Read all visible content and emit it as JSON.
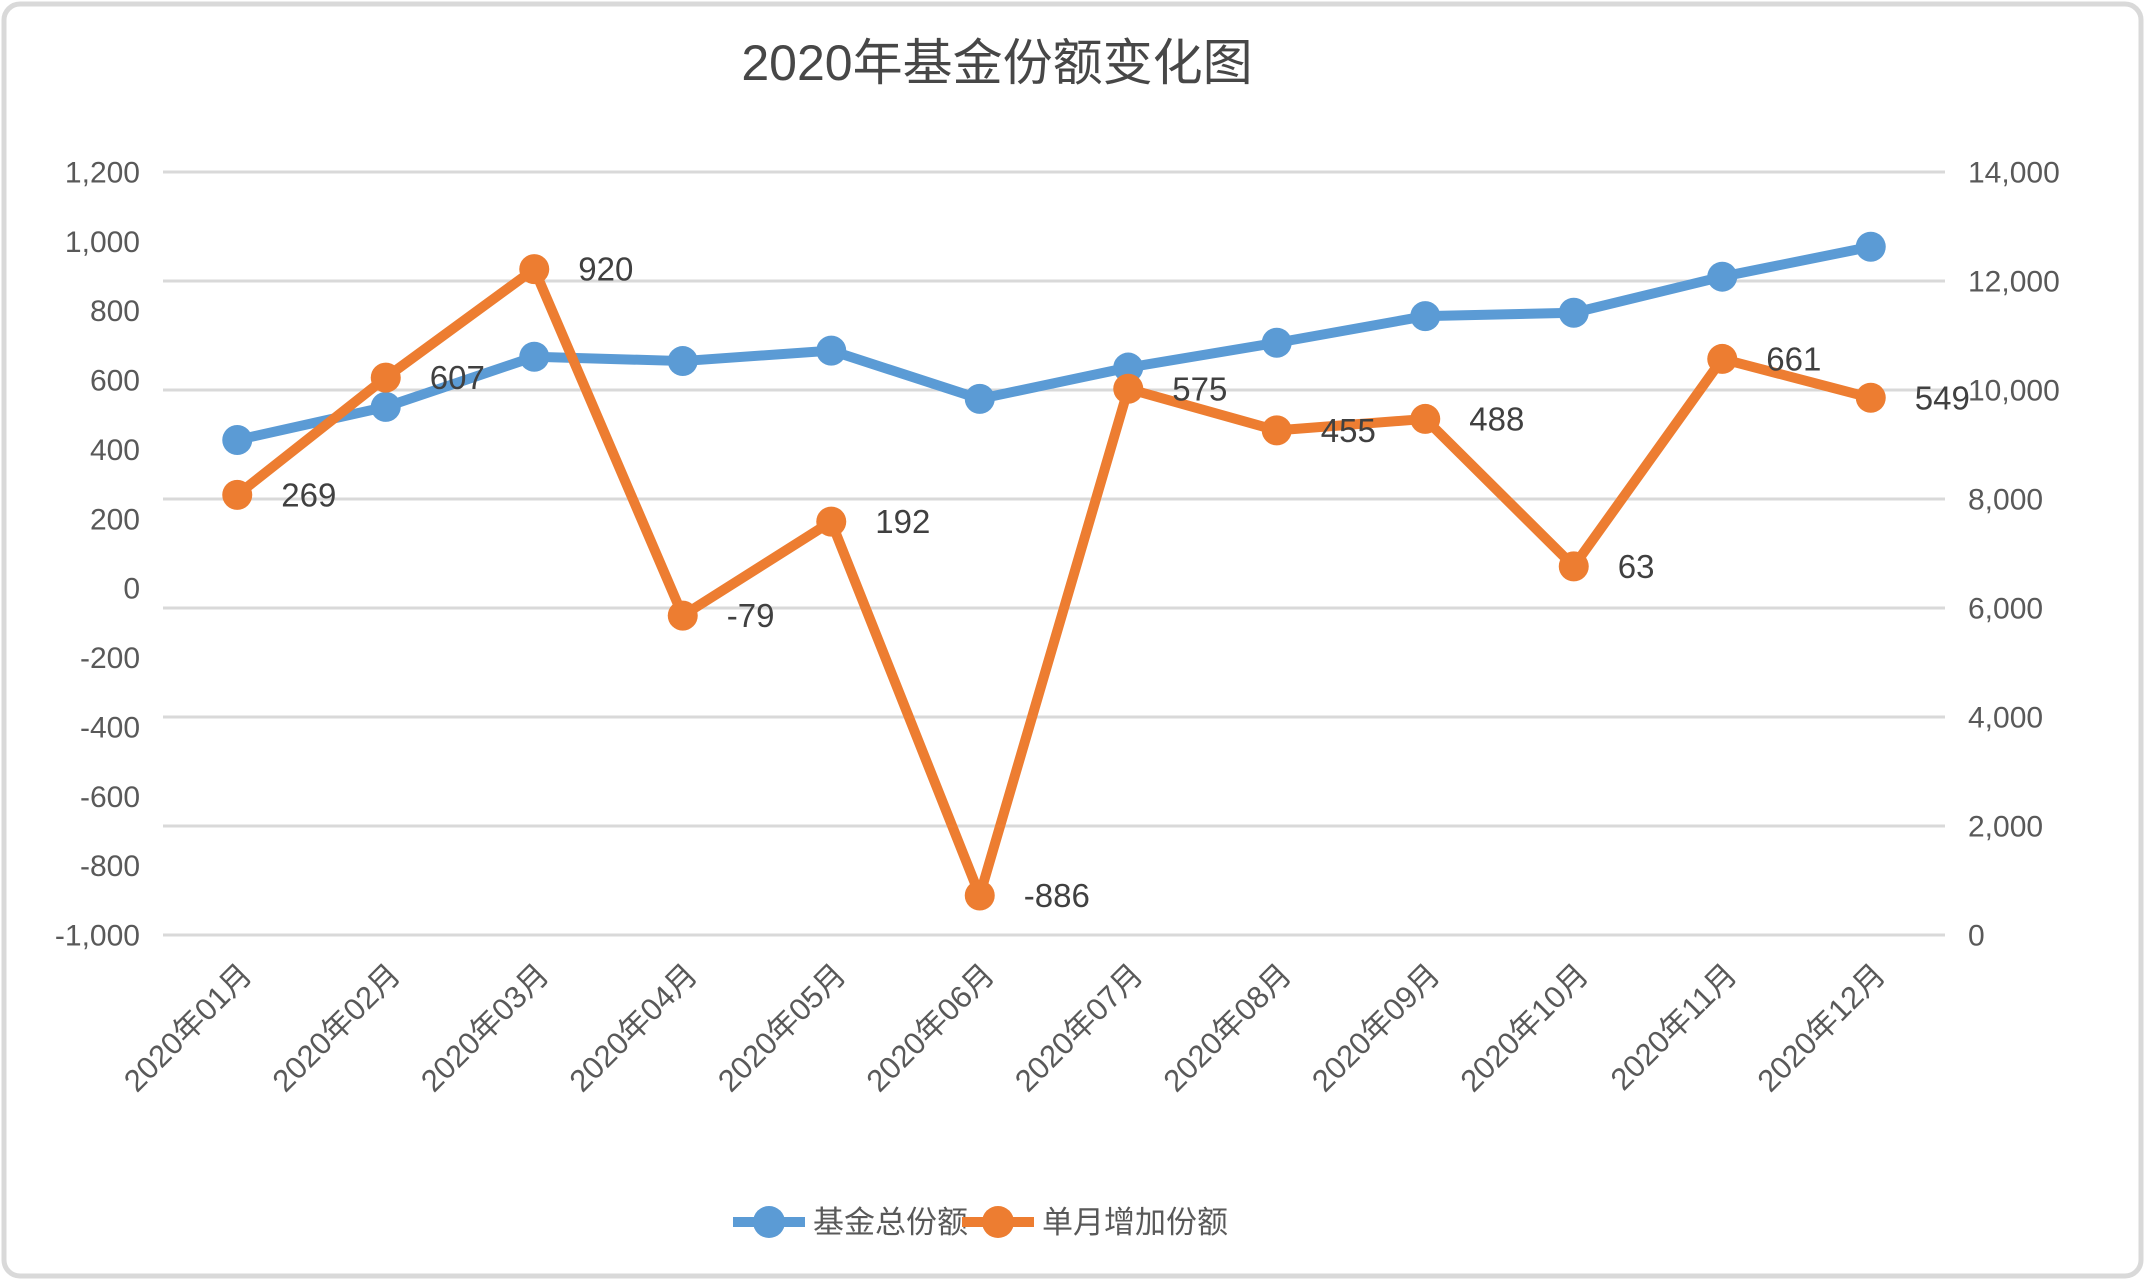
{
  "title": "2020年基金份额变化图",
  "chart_data": {
    "type": "line",
    "categories": [
      "2020年01月",
      "2020年02月",
      "2020年03月",
      "2020年04月",
      "2020年05月",
      "2020年06月",
      "2020年07月",
      "2020年08月",
      "2020年09月",
      "2020年10月",
      "2020年11月",
      "2020年12月"
    ],
    "series": [
      {
        "name": "基金总份额",
        "axis": "right",
        "color": "#5B9BD5",
        "data_labels": false,
        "values": [
          9083,
          9690,
          10610,
          10531,
          10723,
          9837,
          10412,
          10867,
          11355,
          11418,
          12079,
          12628
        ]
      },
      {
        "name": "单月增加份额",
        "axis": "left",
        "color": "#ED7D31",
        "data_labels": true,
        "values": [
          269,
          607,
          920,
          -79,
          192,
          -886,
          575,
          455,
          488,
          63,
          661,
          549
        ],
        "label_texts": [
          "269",
          "607",
          "920",
          "-79",
          "192",
          "-886",
          "575",
          "455",
          "488",
          "63",
          "661",
          "549"
        ]
      }
    ],
    "left_axis": {
      "min": -1000,
      "max": 1200,
      "step": 200,
      "tick_labels": [
        "1,200",
        "1,000",
        "800",
        "600",
        "400",
        "200",
        "0",
        "-200",
        "-400",
        "-600",
        "-800",
        "-1,000"
      ]
    },
    "right_axis": {
      "min": 0,
      "max": 14000,
      "step": 2000,
      "tick_labels": [
        "14,000",
        "12,000",
        "10,000",
        "8,000",
        "6,000",
        "4,000",
        "2,000",
        "0"
      ]
    },
    "grid": true,
    "gridlines_follow": "right_axis",
    "legend_position": "bottom",
    "x_label_rotation_deg": 45
  },
  "colors": {
    "series_total": "#5B9BD5",
    "series_monthly": "#ED7D31",
    "gridline": "#D9D9D9",
    "axis_text": "#595959",
    "data_label_text": "#404040",
    "title_text": "#474747",
    "frame_border": "#D9D9D9",
    "background": "#FFFFFF"
  }
}
